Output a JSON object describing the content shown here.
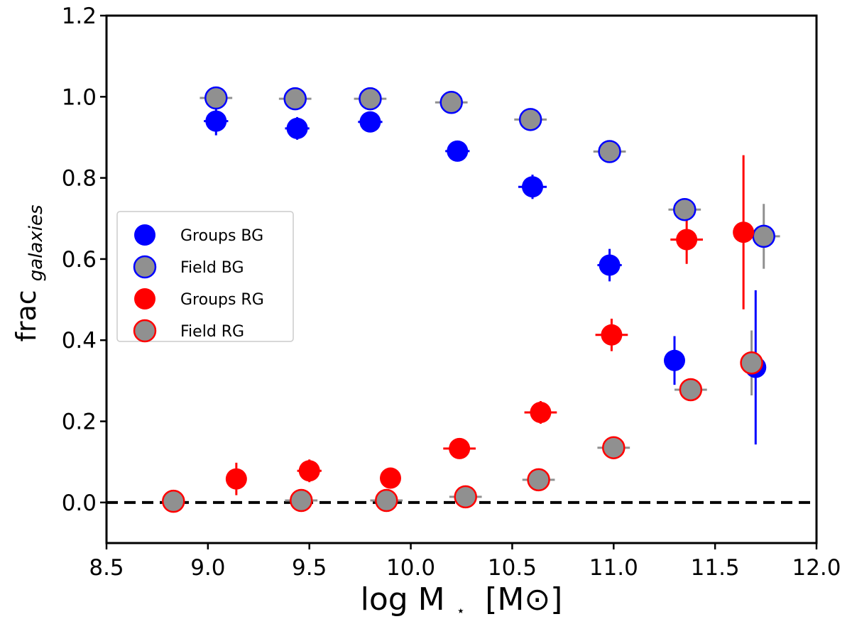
{
  "chart_data": {
    "type": "scatter",
    "xlabel": {
      "main": "log M",
      "sub": "⋆",
      "unit": "[M⊙]"
    },
    "ylabel": {
      "main": "frac",
      "sub": "galaxies"
    },
    "xlim": [
      8.5,
      12.0
    ],
    "ylim": [
      -0.1,
      1.2
    ],
    "xticks": [
      "8.5",
      "9.0",
      "9.5",
      "10.0",
      "10.5",
      "11.0",
      "11.5",
      "12.0"
    ],
    "yticks": [
      "0.0",
      "0.2",
      "0.4",
      "0.6",
      "0.8",
      "1.0",
      "1.2"
    ],
    "reference_line": {
      "y": 0.0,
      "style": "dashed",
      "color": "#000000"
    },
    "legend_position": "center-left",
    "series": [
      {
        "name": "Groups BG",
        "marker": "filled",
        "face_color": "#0000ff",
        "edge_color": "#0000ff",
        "errorbar_color": "#0000ff",
        "points": [
          {
            "x": 9.04,
            "y": 0.94,
            "xerr": 0.06,
            "yerr": 0.035
          },
          {
            "x": 9.44,
            "y": 0.922,
            "xerr": 0.06,
            "yerr": 0.028
          },
          {
            "x": 9.8,
            "y": 0.938,
            "xerr": 0.06,
            "yerr": 0.02
          },
          {
            "x": 10.23,
            "y": 0.866,
            "xerr": 0.06,
            "yerr": 0.015
          },
          {
            "x": 10.6,
            "y": 0.778,
            "xerr": 0.07,
            "yerr": 0.03
          },
          {
            "x": 10.98,
            "y": 0.585,
            "xerr": 0.06,
            "yerr": 0.04
          },
          {
            "x": 11.3,
            "y": 0.35,
            "xerr": 0.03,
            "yerr": 0.06
          },
          {
            "x": 11.7,
            "y": 0.333,
            "xerr": 0.0,
            "yerr": 0.19
          }
        ]
      },
      {
        "name": "Field BG",
        "marker": "gray-fill-edged",
        "face_color": "#909090",
        "edge_color": "#0000ff",
        "errorbar_color": "#909090",
        "points": [
          {
            "x": 9.04,
            "y": 0.997,
            "xerr": 0.08,
            "yerr": 0.0
          },
          {
            "x": 9.43,
            "y": 0.995,
            "xerr": 0.08,
            "yerr": 0.0
          },
          {
            "x": 9.8,
            "y": 0.995,
            "xerr": 0.08,
            "yerr": 0.0
          },
          {
            "x": 10.2,
            "y": 0.986,
            "xerr": 0.08,
            "yerr": 0.0
          },
          {
            "x": 10.59,
            "y": 0.944,
            "xerr": 0.08,
            "yerr": 0.0
          },
          {
            "x": 10.98,
            "y": 0.865,
            "xerr": 0.08,
            "yerr": 0.0
          },
          {
            "x": 11.35,
            "y": 0.722,
            "xerr": 0.08,
            "yerr": 0.025
          },
          {
            "x": 11.74,
            "y": 0.656,
            "xerr": 0.08,
            "yerr": 0.08
          }
        ]
      },
      {
        "name": "Groups RG",
        "marker": "filled",
        "face_color": "#ff0000",
        "edge_color": "#ff0000",
        "errorbar_color": "#ff0000",
        "points": [
          {
            "x": 9.14,
            "y": 0.058,
            "xerr": 0.0,
            "yerr": 0.04
          },
          {
            "x": 9.5,
            "y": 0.078,
            "xerr": 0.06,
            "yerr": 0.028
          },
          {
            "x": 9.9,
            "y": 0.06,
            "xerr": 0.04,
            "yerr": 0.02
          },
          {
            "x": 10.24,
            "y": 0.133,
            "xerr": 0.08,
            "yerr": 0.01
          },
          {
            "x": 10.64,
            "y": 0.222,
            "xerr": 0.08,
            "yerr": 0.028
          },
          {
            "x": 10.99,
            "y": 0.413,
            "xerr": 0.08,
            "yerr": 0.04
          },
          {
            "x": 11.36,
            "y": 0.648,
            "xerr": 0.08,
            "yerr": 0.06
          },
          {
            "x": 11.64,
            "y": 0.666,
            "xerr": 0.0,
            "yerr": 0.19
          }
        ]
      },
      {
        "name": "Field RG",
        "marker": "gray-fill-edged",
        "face_color": "#909090",
        "edge_color": "#ff0000",
        "errorbar_color": "#909090",
        "points": [
          {
            "x": 8.83,
            "y": 0.003,
            "xerr": 0.0,
            "yerr": 0.0
          },
          {
            "x": 9.46,
            "y": 0.005,
            "xerr": 0.08,
            "yerr": 0.0
          },
          {
            "x": 9.88,
            "y": 0.005,
            "xerr": 0.08,
            "yerr": 0.0
          },
          {
            "x": 10.27,
            "y": 0.014,
            "xerr": 0.08,
            "yerr": 0.0
          },
          {
            "x": 10.63,
            "y": 0.056,
            "xerr": 0.08,
            "yerr": 0.0
          },
          {
            "x": 11.0,
            "y": 0.135,
            "xerr": 0.08,
            "yerr": 0.0
          },
          {
            "x": 11.38,
            "y": 0.278,
            "xerr": 0.08,
            "yerr": 0.028
          },
          {
            "x": 11.68,
            "y": 0.344,
            "xerr": 0.0,
            "yerr": 0.08
          }
        ]
      }
    ]
  }
}
